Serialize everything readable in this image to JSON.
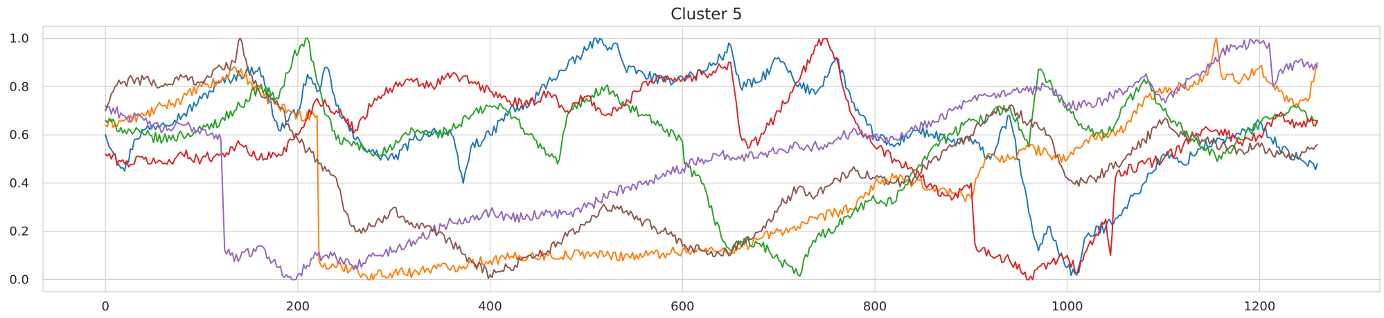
{
  "chart_data": {
    "type": "line",
    "title": "Cluster 5",
    "xlabel": "",
    "ylabel": "",
    "xlim": [
      -65,
      1325
    ],
    "ylim": [
      -0.05,
      1.05
    ],
    "xticks": [
      0,
      200,
      400,
      600,
      800,
      1000,
      1200
    ],
    "yticks": [
      0.0,
      0.2,
      0.4,
      0.6,
      0.8,
      1.0
    ],
    "xtick_labels": [
      "0",
      "200",
      "400",
      "600",
      "800",
      "1000",
      "1200"
    ],
    "ytick_labels": [
      "0.0",
      "0.2",
      "0.4",
      "0.6",
      "0.8",
      "1.0"
    ],
    "grid": true,
    "legend": "none",
    "series": [
      {
        "color": "#1f77b4",
        "x": [
          0,
          10,
          20,
          30,
          40,
          60,
          80,
          100,
          120,
          140,
          160,
          180,
          200,
          210,
          220,
          230,
          240,
          260,
          280,
          300,
          320,
          340,
          360,
          372,
          380,
          400,
          420,
          440,
          460,
          480,
          500,
          510,
          520,
          530,
          540,
          560,
          580,
          600,
          620,
          640,
          650,
          660,
          680,
          700,
          720,
          740,
          760,
          780,
          800,
          820,
          840,
          860,
          880,
          900,
          920,
          940,
          960,
          970,
          980,
          1000,
          1010,
          1020,
          1040,
          1060,
          1080,
          1100,
          1120,
          1140,
          1160,
          1180,
          1200,
          1220,
          1240,
          1250,
          1260
        ],
        "y": [
          0.6,
          0.52,
          0.45,
          0.58,
          0.62,
          0.65,
          0.68,
          0.75,
          0.82,
          0.85,
          0.88,
          0.62,
          0.7,
          0.85,
          0.78,
          0.88,
          0.72,
          0.58,
          0.52,
          0.5,
          0.58,
          0.62,
          0.6,
          0.4,
          0.55,
          0.6,
          0.7,
          0.72,
          0.82,
          0.88,
          0.95,
          1.0,
          0.97,
          0.98,
          0.88,
          0.85,
          0.82,
          0.84,
          0.86,
          0.92,
          0.97,
          0.8,
          0.82,
          0.92,
          0.8,
          0.78,
          0.92,
          0.7,
          0.6,
          0.55,
          0.62,
          0.6,
          0.57,
          0.58,
          0.5,
          0.68,
          0.28,
          0.12,
          0.22,
          0.05,
          0.02,
          0.18,
          0.22,
          0.3,
          0.4,
          0.52,
          0.48,
          0.55,
          0.58,
          0.6,
          0.65,
          0.55,
          0.5,
          0.47,
          0.48
        ]
      },
      {
        "color": "#ff7f0e",
        "x": [
          0,
          20,
          40,
          60,
          80,
          100,
          120,
          135,
          150,
          165,
          180,
          200,
          220,
          222,
          224,
          240,
          260,
          275,
          280,
          300,
          320,
          340,
          360,
          380,
          400,
          420,
          440,
          460,
          480,
          500,
          520,
          540,
          560,
          580,
          600,
          620,
          640,
          660,
          680,
          700,
          720,
          740,
          760,
          780,
          800,
          820,
          840,
          860,
          880,
          900,
          905,
          920,
          940,
          960,
          980,
          1000,
          1020,
          1040,
          1060,
          1080,
          1100,
          1120,
          1140,
          1150,
          1155,
          1160,
          1170,
          1180,
          1200,
          1220,
          1240,
          1250,
          1260
        ],
        "y": [
          0.64,
          0.66,
          0.68,
          0.72,
          0.75,
          0.8,
          0.82,
          0.88,
          0.82,
          0.76,
          0.72,
          0.68,
          0.68,
          0.08,
          0.06,
          0.05,
          0.05,
          0.0,
          0.02,
          0.03,
          0.03,
          0.05,
          0.05,
          0.07,
          0.08,
          0.09,
          0.1,
          0.1,
          0.1,
          0.11,
          0.1,
          0.1,
          0.1,
          0.11,
          0.12,
          0.12,
          0.12,
          0.13,
          0.17,
          0.2,
          0.22,
          0.25,
          0.28,
          0.3,
          0.4,
          0.42,
          0.4,
          0.38,
          0.36,
          0.34,
          0.42,
          0.52,
          0.5,
          0.55,
          0.52,
          0.5,
          0.58,
          0.6,
          0.62,
          0.75,
          0.78,
          0.8,
          0.82,
          0.9,
          1.0,
          0.85,
          0.85,
          0.82,
          0.88,
          0.78,
          0.72,
          0.74,
          0.9
        ]
      },
      {
        "color": "#2ca02c",
        "x": [
          0,
          20,
          40,
          60,
          80,
          100,
          120,
          140,
          160,
          180,
          195,
          210,
          220,
          230,
          240,
          260,
          280,
          300,
          320,
          340,
          360,
          380,
          400,
          420,
          440,
          460,
          470,
          480,
          500,
          520,
          540,
          560,
          580,
          600,
          602,
          620,
          640,
          650,
          660,
          680,
          700,
          720,
          740,
          760,
          780,
          800,
          820,
          840,
          860,
          880,
          900,
          920,
          940,
          960,
          970,
          980,
          1000,
          1020,
          1040,
          1060,
          1080,
          1100,
          1120,
          1140,
          1160,
          1180,
          1200,
          1220,
          1240,
          1250,
          1260
        ],
        "y": [
          0.66,
          0.62,
          0.6,
          0.58,
          0.6,
          0.62,
          0.66,
          0.72,
          0.8,
          0.75,
          0.92,
          1.0,
          0.82,
          0.68,
          0.58,
          0.56,
          0.52,
          0.55,
          0.62,
          0.6,
          0.62,
          0.68,
          0.72,
          0.7,
          0.6,
          0.52,
          0.48,
          0.68,
          0.75,
          0.8,
          0.72,
          0.68,
          0.62,
          0.57,
          0.48,
          0.4,
          0.18,
          0.12,
          0.16,
          0.15,
          0.08,
          0.02,
          0.18,
          0.22,
          0.3,
          0.33,
          0.32,
          0.45,
          0.55,
          0.6,
          0.66,
          0.68,
          0.72,
          0.55,
          0.87,
          0.82,
          0.7,
          0.62,
          0.6,
          0.72,
          0.83,
          0.7,
          0.62,
          0.55,
          0.5,
          0.58,
          0.65,
          0.68,
          0.72,
          0.66,
          0.65
        ]
      },
      {
        "color": "#d62728",
        "x": [
          0,
          20,
          40,
          60,
          80,
          100,
          120,
          140,
          160,
          180,
          200,
          220,
          240,
          260,
          280,
          300,
          320,
          340,
          360,
          380,
          400,
          420,
          440,
          460,
          480,
          500,
          520,
          540,
          560,
          580,
          600,
          620,
          640,
          650,
          660,
          670,
          680,
          700,
          720,
          740,
          750,
          760,
          770,
          780,
          800,
          820,
          840,
          860,
          880,
          900,
          904,
          910,
          920,
          940,
          960,
          980,
          1000,
          1010,
          1020,
          1040,
          1045,
          1050,
          1060,
          1080,
          1100,
          1120,
          1140,
          1160,
          1180,
          1200,
          1220,
          1240,
          1260
        ],
        "y": [
          0.52,
          0.48,
          0.5,
          0.48,
          0.52,
          0.5,
          0.52,
          0.56,
          0.5,
          0.52,
          0.6,
          0.75,
          0.7,
          0.62,
          0.75,
          0.8,
          0.82,
          0.8,
          0.85,
          0.82,
          0.78,
          0.74,
          0.72,
          0.78,
          0.7,
          0.76,
          0.68,
          0.72,
          0.82,
          0.84,
          0.83,
          0.85,
          0.88,
          0.9,
          0.6,
          0.55,
          0.58,
          0.7,
          0.82,
          0.97,
          1.0,
          0.92,
          0.75,
          0.65,
          0.55,
          0.5,
          0.45,
          0.38,
          0.33,
          0.4,
          0.15,
          0.12,
          0.1,
          0.08,
          0.0,
          0.07,
          0.1,
          0.03,
          0.12,
          0.25,
          0.1,
          0.42,
          0.45,
          0.48,
          0.5,
          0.55,
          0.62,
          0.62,
          0.57,
          0.6,
          0.68,
          0.64,
          0.66
        ]
      },
      {
        "color": "#9467bd",
        "x": [
          0,
          20,
          40,
          60,
          80,
          100,
          115,
          120,
          124,
          130,
          140,
          160,
          180,
          190,
          200,
          220,
          240,
          260,
          280,
          300,
          320,
          340,
          360,
          380,
          400,
          420,
          440,
          460,
          480,
          500,
          520,
          540,
          560,
          580,
          600,
          620,
          640,
          660,
          680,
          700,
          720,
          740,
          760,
          780,
          800,
          820,
          840,
          860,
          880,
          900,
          920,
          940,
          960,
          980,
          1000,
          1020,
          1040,
          1060,
          1080,
          1100,
          1120,
          1140,
          1160,
          1180,
          1200,
          1210,
          1214,
          1220,
          1240,
          1260
        ],
        "y": [
          0.72,
          0.68,
          0.66,
          0.62,
          0.64,
          0.62,
          0.6,
          0.58,
          0.12,
          0.1,
          0.09,
          0.14,
          0.05,
          0.01,
          0.02,
          0.1,
          0.09,
          0.06,
          0.1,
          0.12,
          0.16,
          0.2,
          0.24,
          0.26,
          0.28,
          0.26,
          0.26,
          0.28,
          0.27,
          0.3,
          0.34,
          0.38,
          0.4,
          0.44,
          0.46,
          0.5,
          0.52,
          0.5,
          0.52,
          0.54,
          0.56,
          0.55,
          0.58,
          0.62,
          0.6,
          0.58,
          0.62,
          0.66,
          0.7,
          0.74,
          0.76,
          0.77,
          0.78,
          0.8,
          0.72,
          0.72,
          0.75,
          0.78,
          0.84,
          0.75,
          0.8,
          0.86,
          0.94,
          0.97,
          0.98,
          0.98,
          0.8,
          0.86,
          0.9,
          0.88
        ]
      },
      {
        "color": "#8c564b",
        "x": [
          0,
          10,
          20,
          40,
          60,
          80,
          100,
          120,
          135,
          140,
          150,
          160,
          180,
          200,
          220,
          230,
          240,
          250,
          260,
          280,
          300,
          320,
          340,
          360,
          380,
          400,
          420,
          440,
          460,
          480,
          500,
          520,
          540,
          560,
          580,
          600,
          620,
          640,
          660,
          680,
          700,
          720,
          740,
          760,
          780,
          800,
          820,
          840,
          860,
          880,
          900,
          920,
          940,
          960,
          980,
          1000,
          1020,
          1040,
          1060,
          1080,
          1100,
          1120,
          1140,
          1160,
          1180,
          1200,
          1220,
          1240,
          1250,
          1260
        ],
        "y": [
          0.7,
          0.8,
          0.82,
          0.83,
          0.8,
          0.84,
          0.82,
          0.88,
          0.9,
          1.0,
          0.85,
          0.78,
          0.72,
          0.58,
          0.5,
          0.45,
          0.42,
          0.28,
          0.2,
          0.22,
          0.3,
          0.22,
          0.2,
          0.15,
          0.08,
          0.02,
          0.05,
          0.1,
          0.12,
          0.18,
          0.24,
          0.3,
          0.28,
          0.24,
          0.2,
          0.14,
          0.12,
          0.1,
          0.15,
          0.2,
          0.3,
          0.38,
          0.35,
          0.42,
          0.45,
          0.42,
          0.4,
          0.42,
          0.5,
          0.55,
          0.6,
          0.68,
          0.72,
          0.65,
          0.6,
          0.42,
          0.4,
          0.45,
          0.5,
          0.58,
          0.66,
          0.6,
          0.58,
          0.55,
          0.54,
          0.55,
          0.52,
          0.5,
          0.55,
          0.56
        ]
      }
    ]
  }
}
